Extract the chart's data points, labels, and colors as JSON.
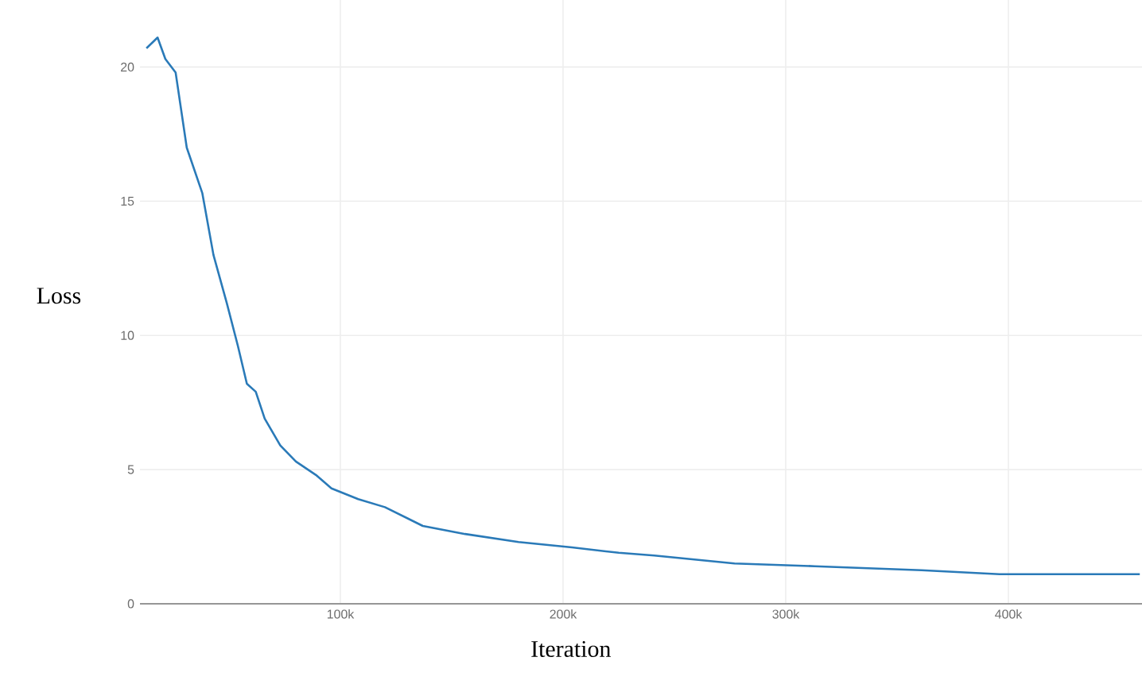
{
  "chart_data": {
    "type": "line",
    "xlabel": "Iteration",
    "ylabel": "Loss",
    "series": [
      {
        "color": "#2a7ab8",
        "x": [
          12900,
          17900,
          21400,
          26000,
          31000,
          38000,
          43000,
          49000,
          54000,
          58000,
          62000,
          66000,
          73000,
          80000,
          89000,
          96000,
          108000,
          120000,
          137000,
          156000,
          180000,
          204000,
          225000,
          241000,
          277000,
          313000,
          361000,
          396000,
          432000,
          459000
        ],
        "values": [
          20.7,
          21.1,
          20.3,
          19.8,
          17.0,
          15.3,
          13.0,
          11.2,
          9.6,
          8.2,
          7.9,
          6.9,
          5.9,
          5.3,
          4.8,
          4.3,
          3.9,
          3.6,
          2.9,
          2.6,
          2.3,
          2.1,
          1.9,
          1.8,
          1.5,
          1.4,
          1.25,
          1.1,
          1.1,
          1.1
        ]
      }
    ],
    "xlim": [
      10000,
      460000
    ],
    "ylim": [
      0,
      22.5
    ],
    "xticks": [
      {
        "value": 100000,
        "label": "100k"
      },
      {
        "value": 200000,
        "label": "200k"
      },
      {
        "value": 300000,
        "label": "300k"
      },
      {
        "value": 400000,
        "label": "400k"
      }
    ],
    "yticks": [
      0,
      5,
      10,
      15,
      20
    ],
    "grid": true,
    "legend": false,
    "marker": "none",
    "line_style": "solid"
  }
}
